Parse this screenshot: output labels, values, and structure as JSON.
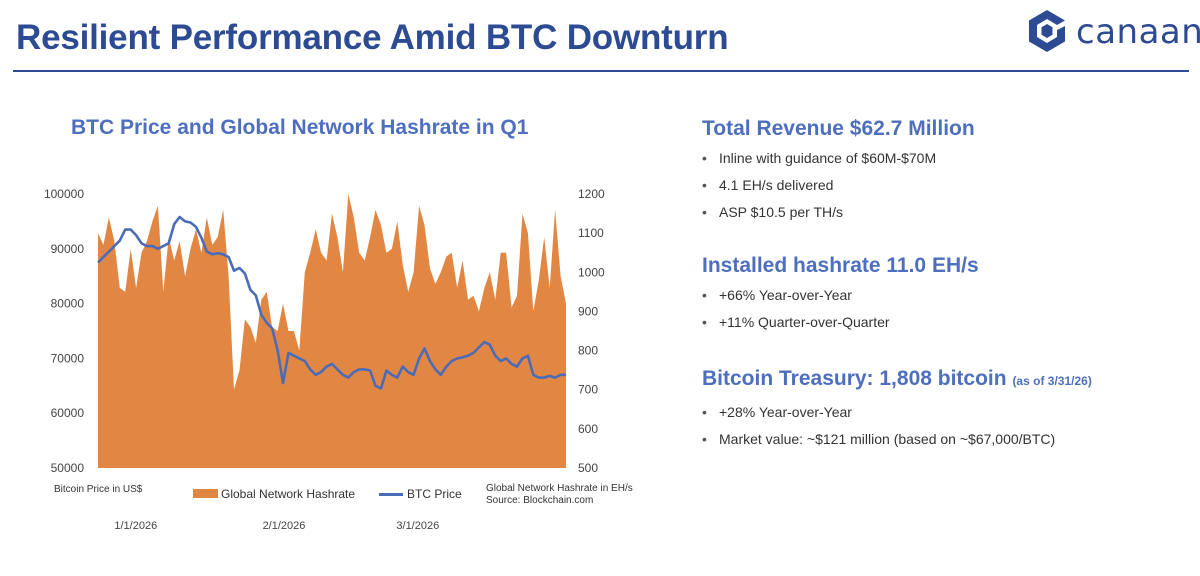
{
  "header": {
    "title": "Resilient Performance Amid BTC Downturn",
    "logo_text": "canaan",
    "logo_icon": "canaan-hexagon-logo-icon",
    "brand_color": "#2d4b93"
  },
  "chart_section": {
    "title": "BTC Price and Global Network Hashrate in Q1",
    "left_axis_note": "Bitcoin Price in US$",
    "right_axis_note": "Global Network Hashrate in EH/s",
    "source": "Source: Blockchain.com",
    "legend": {
      "hashrate": "Global Network Hashrate",
      "price": "BTC Price"
    }
  },
  "chart_data": {
    "type": "area+line",
    "title": "BTC Price and Global Network Hashrate in Q1",
    "x_tick_labels": [
      {
        "label": "1/1/2026",
        "day": 0
      },
      {
        "label": "2/1/2026",
        "day": 31
      },
      {
        "label": "3/1/2026",
        "day": 59
      }
    ],
    "y_left": {
      "label": "Bitcoin Price in US$",
      "ticks": [
        50000,
        60000,
        70000,
        80000,
        90000,
        100000
      ],
      "range": [
        50000,
        100000
      ]
    },
    "y_right": {
      "label": "Global Network Hashrate in EH/s",
      "ticks": [
        500,
        600,
        700,
        800,
        900,
        1000,
        1100,
        1200
      ],
      "range": [
        500,
        1200
      ]
    },
    "series": [
      {
        "name": "Global Network Hashrate",
        "axis": "right",
        "type": "area",
        "color": "#e28743",
        "values": [
          1100,
          1070,
          1140,
          1080,
          960,
          950,
          1060,
          960,
          1050,
          1080,
          1130,
          1170,
          950,
          1090,
          1030,
          1080,
          990,
          1060,
          1110,
          1050,
          1140,
          1070,
          1090,
          1160,
          990,
          700,
          750,
          880,
          860,
          820,
          930,
          950,
          860,
          850,
          920,
          850,
          850,
          800,
          1000,
          1050,
          1110,
          1050,
          1030,
          1150,
          1090,
          1000,
          1200,
          1140,
          1050,
          1030,
          1090,
          1160,
          1120,
          1050,
          1060,
          1130,
          1020,
          950,
          1000,
          1170,
          1120,
          1010,
          970,
          1000,
          1040,
          1050,
          960,
          1030,
          930,
          940,
          900,
          960,
          1000,
          930,
          1050,
          1050,
          910,
          940,
          1150,
          1100,
          900,
          980,
          1090,
          960,
          1160,
          990,
          920
        ]
      },
      {
        "name": "BTC Price",
        "axis": "left",
        "type": "line",
        "color": "#4a6cb8",
        "values": [
          87500,
          88500,
          89500,
          90500,
          91500,
          93500,
          93500,
          92500,
          91000,
          90500,
          90500,
          90000,
          90500,
          91000,
          94500,
          95800,
          95000,
          94800,
          94000,
          92000,
          89500,
          89000,
          89200,
          89000,
          88500,
          86000,
          86500,
          85500,
          82500,
          81500,
          78000,
          76500,
          75500,
          71500,
          65500,
          71000,
          70500,
          70000,
          69500,
          68000,
          67000,
          67500,
          68500,
          69000,
          68000,
          67000,
          66500,
          67500,
          68000,
          68000,
          67800,
          65000,
          64500,
          67800,
          67000,
          66500,
          68500,
          67500,
          67000,
          70000,
          71800,
          69500,
          68000,
          67000,
          68500,
          69500,
          70000,
          70200,
          70500,
          71000,
          72000,
          73000,
          72500,
          70500,
          69500,
          70000,
          69000,
          68500,
          70000,
          70500,
          67000,
          66500,
          66500,
          66800,
          66500,
          67000,
          67000
        ]
      }
    ],
    "legend_placement": "bottom",
    "grid": false
  },
  "right_panel": {
    "sections": [
      {
        "heading": "Total Revenue $62.7 Million",
        "bullets": [
          "Inline with guidance of $60M-$70M",
          "4.1 EH/s delivered",
          "ASP $10.5 per TH/s"
        ]
      },
      {
        "heading": "Installed hashrate 11.0 EH/s",
        "bullets": [
          "+66% Year-over-Year",
          "+11% Quarter-over-Quarter"
        ]
      },
      {
        "heading": "Bitcoin Treasury: 1,808 bitcoin",
        "heading_sub": "(as of 3/31/26)",
        "bullets": [
          "+28% Year-over-Year",
          "Market value: ~$121 million (based on ~$67,000/BTC)"
        ]
      }
    ]
  }
}
